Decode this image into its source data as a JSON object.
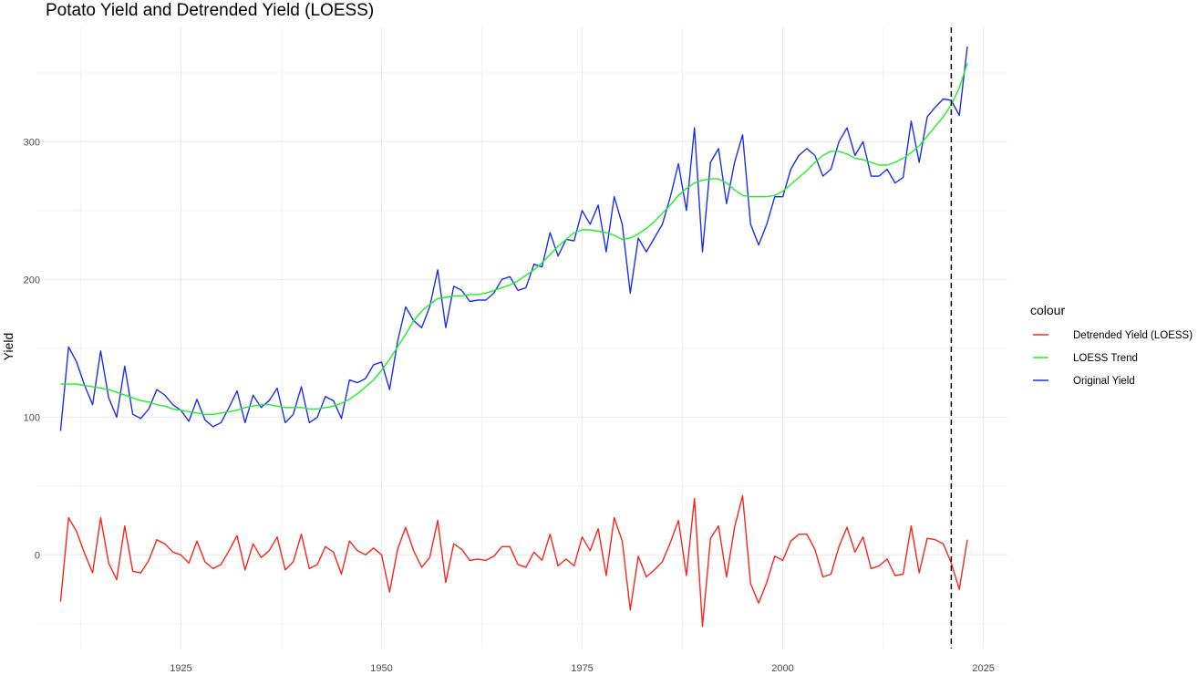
{
  "chart_data": {
    "type": "line",
    "title": "Potato Yield and Detrended Yield (LOESS)",
    "xlabel": "",
    "ylabel": "Yield",
    "xlim": [
      1907,
      2028
    ],
    "ylim": [
      -68,
      383
    ],
    "x_ticks": [
      1925,
      1950,
      1975,
      2000,
      2025
    ],
    "y_ticks": [
      0,
      100,
      200,
      300
    ],
    "x_minor": [
      1912.5,
      1937.5,
      1962.5,
      1987.5,
      2012.5
    ],
    "y_minor": [
      -50,
      50,
      150,
      250,
      350
    ],
    "grid": true,
    "legend": {
      "title": "colour",
      "position": "right",
      "entries": [
        {
          "label": "Detrended Yield (LOESS)",
          "color": "#F8261B"
        },
        {
          "label": "LOESS Trend",
          "color": "#1EF21E"
        },
        {
          "label": "Original Yield",
          "color": "#1B2FF2"
        }
      ]
    },
    "vline": {
      "x": 2021,
      "style": "dashed",
      "color": "#000000"
    },
    "x": [
      1910,
      1911,
      1912,
      1913,
      1914,
      1915,
      1916,
      1917,
      1918,
      1919,
      1920,
      1921,
      1922,
      1923,
      1924,
      1925,
      1926,
      1927,
      1928,
      1929,
      1930,
      1931,
      1932,
      1933,
      1934,
      1935,
      1936,
      1937,
      1938,
      1939,
      1940,
      1941,
      1942,
      1943,
      1944,
      1945,
      1946,
      1947,
      1948,
      1949,
      1950,
      1951,
      1952,
      1953,
      1954,
      1955,
      1956,
      1957,
      1958,
      1959,
      1960,
      1961,
      1962,
      1963,
      1964,
      1965,
      1966,
      1967,
      1968,
      1969,
      1970,
      1971,
      1972,
      1973,
      1974,
      1975,
      1976,
      1977,
      1978,
      1979,
      1980,
      1981,
      1982,
      1983,
      1984,
      1985,
      1986,
      1987,
      1988,
      1989,
      1990,
      1991,
      1992,
      1993,
      1994,
      1995,
      1996,
      1997,
      1998,
      1999,
      2000,
      2001,
      2002,
      2003,
      2004,
      2005,
      2006,
      2007,
      2008,
      2009,
      2010,
      2011,
      2012,
      2013,
      2014,
      2015,
      2016,
      2017,
      2018,
      2019,
      2020,
      2021,
      2022,
      2023
    ],
    "series": [
      {
        "name": "Original Yield",
        "color": "#1B2FF2",
        "values": [
          90,
          151,
          140,
          123,
          109,
          148,
          114,
          100,
          137,
          102,
          99,
          106,
          120,
          116,
          109,
          105,
          97,
          113,
          98,
          93,
          96,
          107,
          119,
          96,
          116,
          107,
          112,
          121,
          96,
          102,
          122,
          96,
          100,
          115,
          112,
          99,
          127,
          125,
          128,
          138,
          140,
          120,
          155,
          180,
          170,
          165,
          180,
          207,
          165,
          195,
          192,
          184,
          185,
          185,
          190,
          200,
          202,
          192,
          194,
          211,
          209,
          234,
          217,
          229,
          228,
          250,
          240,
          254,
          220,
          260,
          240,
          190,
          230,
          220,
          230,
          240,
          260,
          284,
          250,
          310,
          220,
          285,
          295,
          255,
          285,
          305,
          240,
          225,
          240,
          260,
          260,
          280,
          290,
          295,
          290,
          275,
          280,
          300,
          310,
          290,
          300,
          275,
          275,
          280,
          270,
          274,
          315,
          285,
          318,
          325,
          331,
          330,
          319,
          369
        ]
      },
      {
        "name": "LOESS Trend",
        "color": "#1EF21E",
        "values": [
          124,
          124,
          124,
          123,
          122,
          121,
          120,
          118,
          116,
          114,
          112,
          111,
          109,
          108,
          106,
          105,
          104,
          103,
          102,
          102,
          103,
          104,
          105,
          107,
          108,
          109,
          109,
          108,
          107,
          107,
          107,
          106,
          106,
          107,
          108,
          110,
          113,
          117,
          122,
          127,
          134,
          142,
          151,
          160,
          170,
          177,
          182,
          186,
          187,
          188,
          188,
          189,
          189,
          190,
          192,
          194,
          196,
          199,
          203,
          207,
          212,
          218,
          224,
          229,
          234,
          236,
          236,
          235,
          234,
          232,
          229,
          230,
          233,
          237,
          242,
          248,
          254,
          261,
          266,
          270,
          272,
          273,
          273,
          270,
          265,
          261,
          260,
          260,
          260,
          261,
          264,
          269,
          274,
          279,
          285,
          290,
          293,
          293,
          291,
          288,
          287,
          285,
          283,
          283,
          285,
          288,
          292,
          297,
          304,
          311,
          318,
          327,
          339,
          357
        ]
      },
      {
        "name": "Detrended Yield (LOESS)",
        "color": "#F8261B",
        "values": [
          -34,
          27,
          17,
          1,
          -13,
          27,
          -6,
          -18,
          21,
          -12,
          -13,
          -4,
          11,
          8,
          2,
          0,
          -6,
          10,
          -5,
          -10,
          -7,
          3,
          14,
          -11,
          8,
          -2,
          3,
          13,
          -11,
          -5,
          15,
          -10,
          -7,
          6,
          2,
          -14,
          10,
          3,
          0,
          5,
          0,
          -27,
          4,
          20,
          3,
          -9,
          -2,
          25,
          -20,
          8,
          4,
          -4,
          -3,
          -4,
          -1,
          6,
          6,
          -7,
          -9,
          2,
          -4,
          15,
          -8,
          -3,
          -8,
          13,
          3,
          19,
          -15,
          27,
          10,
          -40,
          -1,
          -16,
          -11,
          -5,
          9,
          25,
          -15,
          41,
          -52,
          12,
          21,
          -16,
          20,
          43,
          -21,
          -35,
          -20,
          -1,
          -4,
          10,
          15,
          15,
          4,
          -16,
          -14,
          6,
          20,
          2,
          13,
          -10,
          -8,
          -3,
          -15,
          -14,
          21,
          -13,
          12,
          11,
          8,
          -6,
          -25,
          11
        ]
      }
    ]
  }
}
